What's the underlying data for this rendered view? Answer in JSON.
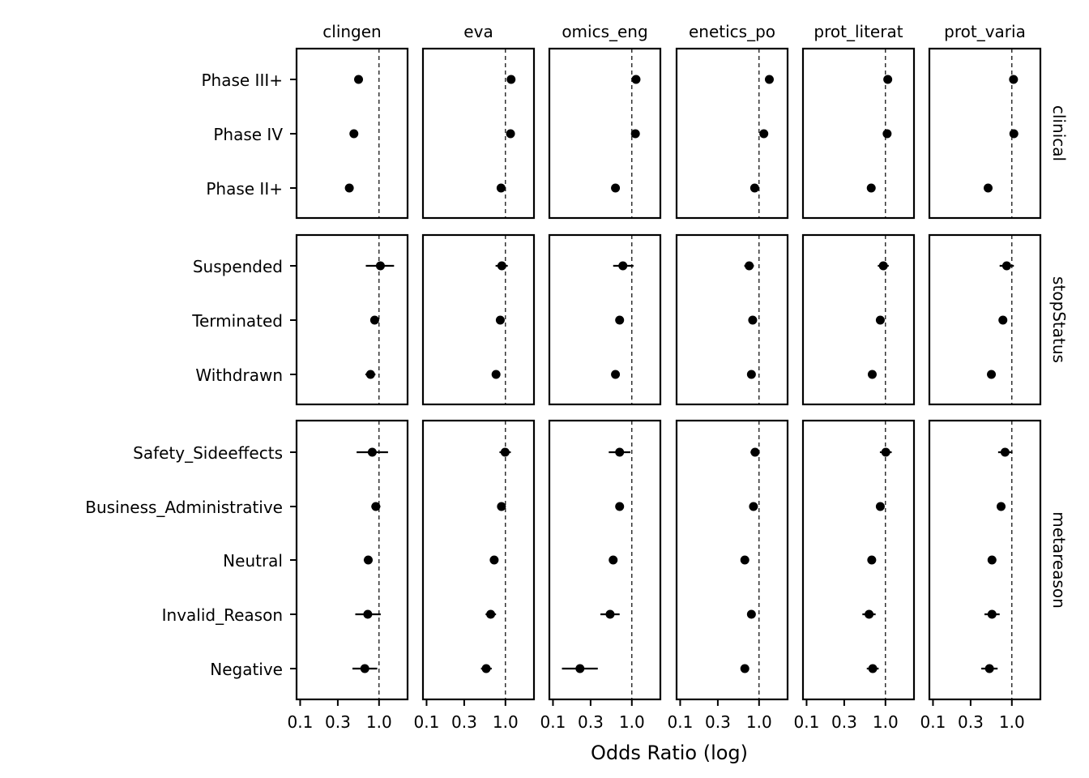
{
  "chart_data": {
    "type": "scatter",
    "subtype": "forest-plot-faceted",
    "xlabel": "Odds Ratio (log)",
    "ylabel": "",
    "x_scale": "log",
    "xlim": [
      0.09,
      2.3
    ],
    "x_ticks": [
      0.1,
      0.3,
      1.0
    ],
    "x_tick_labels": [
      "0.1",
      "0.3",
      "1.0"
    ],
    "reference_line": 1.0,
    "grid": false,
    "columns": [
      {
        "id": "clingen",
        "label": "clingen"
      },
      {
        "id": "eva",
        "label": "eva"
      },
      {
        "id": "genomics_eng",
        "label": "omics_eng"
      },
      {
        "id": "genetics_po",
        "label": "enetics_po"
      },
      {
        "id": "uniprot_literat",
        "label": "prot_literat"
      },
      {
        "id": "uniprot_varia",
        "label": "prot_varia"
      }
    ],
    "rows": [
      {
        "id": "clinical",
        "label": "clinical",
        "categories": [
          "Phase III+",
          "Phase IV",
          "Phase II+"
        ]
      },
      {
        "id": "stopStatus",
        "label": "stopStatus",
        "categories": [
          "Suspended",
          "Terminated",
          "Withdrawn"
        ]
      },
      {
        "id": "metareason",
        "label": "metareason",
        "categories": [
          "Safety_Sideeffects",
          "Business_Administrative",
          "Neutral",
          "Invalid_Reason",
          "Negative"
        ]
      }
    ],
    "estimates": {
      "clinical": {
        "clingen": [
          [
            0.55,
            0.53,
            0.57
          ],
          [
            0.48,
            0.46,
            0.5
          ],
          [
            0.42,
            0.4,
            0.44
          ]
        ],
        "eva": [
          [
            1.18,
            1.15,
            1.21
          ],
          [
            1.16,
            1.13,
            1.19
          ],
          [
            0.88,
            0.86,
            0.9
          ]
        ],
        "genomics_eng": [
          [
            1.13,
            1.1,
            1.16
          ],
          [
            1.11,
            1.08,
            1.14
          ],
          [
            0.62,
            0.6,
            0.64
          ]
        ],
        "genetics_po": [
          [
            1.35,
            1.32,
            1.38
          ],
          [
            1.15,
            1.12,
            1.18
          ],
          [
            0.88,
            0.86,
            0.9
          ]
        ],
        "uniprot_literat": [
          [
            1.07,
            1.04,
            1.1
          ],
          [
            1.05,
            1.02,
            1.08
          ],
          [
            0.66,
            0.64,
            0.68
          ]
        ],
        "uniprot_varia": [
          [
            1.05,
            1.02,
            1.08
          ],
          [
            1.06,
            1.03,
            1.09
          ],
          [
            0.5,
            0.48,
            0.52
          ]
        ]
      },
      "stopStatus": {
        "clingen": [
          [
            1.04,
            0.68,
            1.55
          ],
          [
            0.88,
            0.84,
            0.92
          ],
          [
            0.78,
            0.67,
            0.9
          ]
        ],
        "eva": [
          [
            0.9,
            0.75,
            1.07
          ],
          [
            0.86,
            0.82,
            0.9
          ],
          [
            0.76,
            0.73,
            0.79
          ]
        ],
        "genomics_eng": [
          [
            0.77,
            0.58,
            1.05
          ],
          [
            0.7,
            0.66,
            0.74
          ],
          [
            0.62,
            0.56,
            0.7
          ]
        ],
        "genetics_po": [
          [
            0.75,
            0.65,
            0.86
          ],
          [
            0.83,
            0.8,
            0.86
          ],
          [
            0.8,
            0.77,
            0.83
          ]
        ],
        "uniprot_literat": [
          [
            0.94,
            0.8,
            1.1
          ],
          [
            0.86,
            0.82,
            0.9
          ],
          [
            0.68,
            0.64,
            0.72
          ]
        ],
        "uniprot_varia": [
          [
            0.86,
            0.7,
            1.06
          ],
          [
            0.77,
            0.74,
            0.8
          ],
          [
            0.55,
            0.49,
            0.61
          ]
        ]
      },
      "metareason": {
        "clingen": [
          [
            0.82,
            0.52,
            1.3
          ],
          [
            0.91,
            0.8,
            1.04
          ],
          [
            0.73,
            0.64,
            0.82
          ],
          [
            0.72,
            0.5,
            1.05
          ],
          [
            0.66,
            0.46,
            0.95
          ]
        ],
        "eva": [
          [
            0.99,
            0.84,
            1.17
          ],
          [
            0.89,
            0.85,
            0.93
          ],
          [
            0.72,
            0.69,
            0.75
          ],
          [
            0.65,
            0.56,
            0.76
          ],
          [
            0.57,
            0.49,
            0.67
          ]
        ],
        "genomics_eng": [
          [
            0.7,
            0.51,
            0.96
          ],
          [
            0.7,
            0.62,
            0.79
          ],
          [
            0.58,
            0.54,
            0.62
          ],
          [
            0.53,
            0.4,
            0.7
          ],
          [
            0.22,
            0.13,
            0.37
          ]
        ],
        "genetics_po": [
          [
            0.89,
            0.78,
            1.02
          ],
          [
            0.85,
            0.8,
            0.9
          ],
          [
            0.66,
            0.64,
            0.68
          ],
          [
            0.8,
            0.72,
            0.89
          ],
          [
            0.66,
            0.6,
            0.73
          ]
        ],
        "uniprot_literat": [
          [
            1.01,
            0.85,
            1.2
          ],
          [
            0.86,
            0.8,
            0.93
          ],
          [
            0.67,
            0.64,
            0.7
          ],
          [
            0.62,
            0.51,
            0.75
          ],
          [
            0.69,
            0.58,
            0.82
          ]
        ],
        "uniprot_varia": [
          [
            0.82,
            0.67,
            1.02
          ],
          [
            0.73,
            0.66,
            0.81
          ],
          [
            0.56,
            0.53,
            0.59
          ],
          [
            0.56,
            0.45,
            0.7
          ],
          [
            0.52,
            0.41,
            0.66
          ]
        ]
      }
    }
  }
}
